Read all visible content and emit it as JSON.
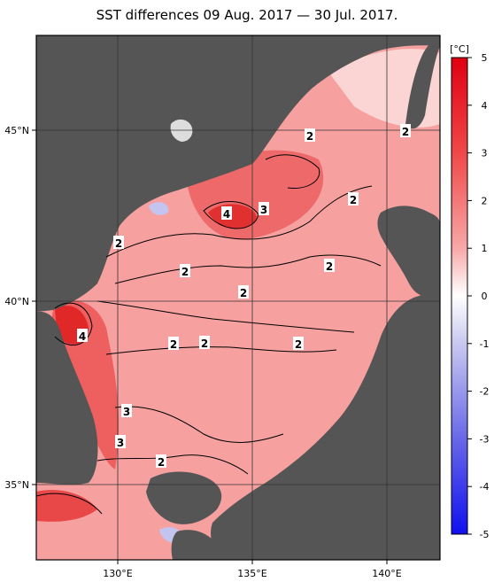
{
  "title": "SST differences 09 Aug. 2017 — 30 Jul. 2017.",
  "colorbar": {
    "unit": "[°C]",
    "ticks": [
      "5",
      "4",
      "3",
      "2",
      "1",
      "0",
      "-1",
      "-2",
      "-3",
      "-4",
      "-5"
    ]
  },
  "axes": {
    "lon_labels": [
      "130°E",
      "135°E",
      "140°E"
    ],
    "lat_labels": [
      "45°N",
      "40°N",
      "35°N"
    ]
  },
  "contour_labels": [
    "2",
    "2",
    "4",
    "3",
    "2",
    "2",
    "2",
    "2",
    "4",
    "2",
    "2",
    "2",
    "2",
    "3",
    "3",
    "2"
  ],
  "colors": {
    "land": "#555555",
    "warm_strong": "#e02020",
    "warm_mid": "#f07070",
    "warm_light": "#f8b8b8",
    "cool_light": "#c8c8f0"
  }
}
